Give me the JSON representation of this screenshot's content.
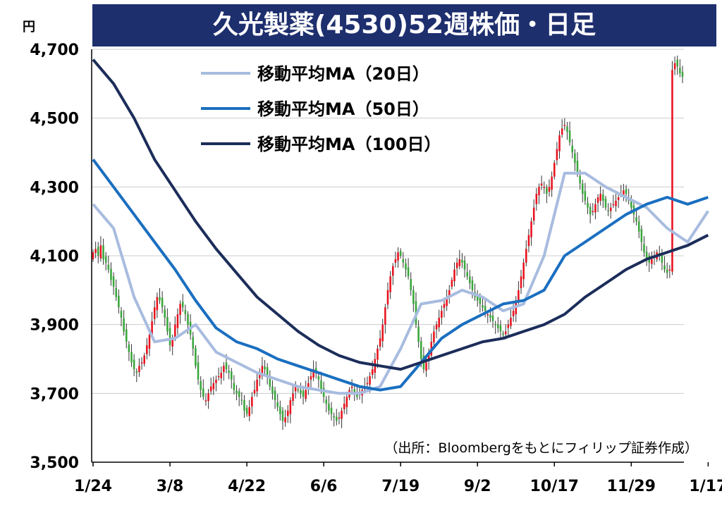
{
  "title": "久光製薬(4530)52週株価・日足",
  "unit_label": "円",
  "source_note": "（出所：Bloombergをもとにフィリップ証券作成）",
  "colors": {
    "title_bg": "#1e2f6e",
    "up": "#e8121e",
    "down": "#38a63a",
    "ma20": "#a8bcdf",
    "ma50": "#1a6fc0",
    "ma100": "#1c2d5a",
    "grid": "#cccccc"
  },
  "chart_data": {
    "type": "line",
    "title": "久光製薬(4530)52週株価・日足",
    "xlabel": "",
    "ylabel": "円",
    "ylim": [
      3500,
      4700
    ],
    "yticks": [
      "3,500",
      "3,700",
      "3,900",
      "4,100",
      "4,300",
      "4,500",
      "4,700"
    ],
    "ytick_values": [
      3500,
      3700,
      3900,
      4100,
      4300,
      4500,
      4700
    ],
    "xticks": [
      "1/24",
      "3/8",
      "4/22",
      "6/6",
      "7/19",
      "9/2",
      "10/17",
      "11/29",
      "1/17"
    ],
    "xtick_index": [
      0,
      30,
      60,
      90,
      120,
      150,
      180,
      210,
      240
    ],
    "grid": true,
    "legend_position": "top-center",
    "legend": [
      "移動平均MA（20日）",
      "移動平均MA（50日）",
      "移動平均MA（100日）"
    ],
    "candles_close": [
      4110,
      4120,
      4100,
      4130,
      4090,
      4080,
      4060,
      4030,
      4010,
      3980,
      3950,
      3920,
      3880,
      3850,
      3820,
      3790,
      3770,
      3760,
      3780,
      3790,
      3810,
      3840,
      3870,
      3910,
      3950,
      3980,
      3970,
      3950,
      3920,
      3880,
      3840,
      3860,
      3900,
      3930,
      3960,
      3950,
      3930,
      3900,
      3870,
      3830,
      3780,
      3740,
      3710,
      3690,
      3680,
      3700,
      3720,
      3730,
      3740,
      3750,
      3760,
      3780,
      3770,
      3760,
      3740,
      3710,
      3700,
      3690,
      3680,
      3650,
      3640,
      3660,
      3690,
      3710,
      3740,
      3760,
      3780,
      3770,
      3750,
      3720,
      3700,
      3680,
      3660,
      3640,
      3620,
      3630,
      3650,
      3680,
      3700,
      3720,
      3710,
      3700,
      3690,
      3710,
      3730,
      3750,
      3770,
      3760,
      3740,
      3710,
      3690,
      3670,
      3650,
      3640,
      3630,
      3620,
      3630,
      3650,
      3670,
      3690,
      3710,
      3720,
      3700,
      3690,
      3700,
      3710,
      3720,
      3730,
      3750,
      3770,
      3800,
      3830,
      3860,
      3900,
      3950,
      4000,
      4040,
      4070,
      4090,
      4110,
      4100,
      4080,
      4060,
      4040,
      4000,
      3960,
      3900,
      3850,
      3800,
      3770,
      3790,
      3820,
      3850,
      3880,
      3900,
      3920,
      3940,
      3960,
      3980,
      4000,
      4030,
      4060,
      4080,
      4090,
      4080,
      4060,
      4040,
      4020,
      4000,
      3980,
      3970,
      3960,
      3950,
      3940,
      3930,
      3920,
      3910,
      3900,
      3890,
      3880,
      3870,
      3880,
      3900,
      3920,
      3940,
      3970,
      4000,
      4040,
      4080,
      4120,
      4160,
      4200,
      4240,
      4280,
      4300,
      4310,
      4300,
      4280,
      4300,
      4330,
      4370,
      4410,
      4450,
      4470,
      4480,
      4460,
      4430,
      4400,
      4370,
      4340,
      4310,
      4280,
      4260,
      4240,
      4220,
      4230,
      4250,
      4270,
      4280,
      4260,
      4240,
      4230,
      4240,
      4250,
      4260,
      4270,
      4280,
      4290,
      4280,
      4260,
      4240,
      4220,
      4200,
      4170,
      4140,
      4110,
      4090,
      4080,
      4090,
      4100,
      4110,
      4100,
      4080,
      4060,
      4050,
      4060,
      4640,
      4660,
      4650,
      4630,
      4620
    ],
    "series": [
      {
        "name": "移動平均MA（20日）",
        "anchor_index": [
          0,
          8,
          16,
          24,
          32,
          40,
          48,
          56,
          64,
          72,
          80,
          88,
          96,
          104,
          112,
          120,
          128,
          136,
          144,
          152,
          160,
          168,
          176,
          184,
          192,
          200,
          208,
          216,
          224,
          232,
          240
        ],
        "values": [
          4250,
          4180,
          3980,
          3850,
          3860,
          3900,
          3820,
          3790,
          3760,
          3740,
          3720,
          3710,
          3700,
          3700,
          3720,
          3830,
          3960,
          3970,
          4000,
          3980,
          3940,
          3960,
          4100,
          4340,
          4340,
          4300,
          4270,
          4240,
          4180,
          4140,
          4230
        ]
      },
      {
        "name": "移動平均MA（50日）",
        "anchor_index": [
          0,
          8,
          16,
          24,
          32,
          40,
          48,
          56,
          64,
          72,
          80,
          88,
          96,
          104,
          112,
          120,
          128,
          136,
          144,
          152,
          160,
          168,
          176,
          184,
          192,
          200,
          208,
          216,
          224,
          232,
          240
        ],
        "values": [
          4380,
          4300,
          4220,
          4140,
          4060,
          3970,
          3890,
          3850,
          3830,
          3800,
          3780,
          3760,
          3740,
          3720,
          3710,
          3720,
          3790,
          3860,
          3900,
          3930,
          3960,
          3970,
          4000,
          4100,
          4140,
          4180,
          4220,
          4250,
          4270,
          4250,
          4270
        ]
      },
      {
        "name": "移動平均MA（100日）",
        "anchor_index": [
          0,
          8,
          16,
          24,
          32,
          40,
          48,
          56,
          64,
          72,
          80,
          88,
          96,
          104,
          112,
          120,
          128,
          136,
          144,
          152,
          160,
          168,
          176,
          184,
          192,
          200,
          208,
          216,
          224,
          232,
          240
        ],
        "values": [
          4670,
          4600,
          4500,
          4380,
          4290,
          4200,
          4120,
          4050,
          3980,
          3930,
          3880,
          3840,
          3810,
          3790,
          3780,
          3770,
          3790,
          3810,
          3830,
          3850,
          3860,
          3880,
          3900,
          3930,
          3980,
          4020,
          4060,
          4090,
          4110,
          4130,
          4160
        ]
      }
    ]
  }
}
